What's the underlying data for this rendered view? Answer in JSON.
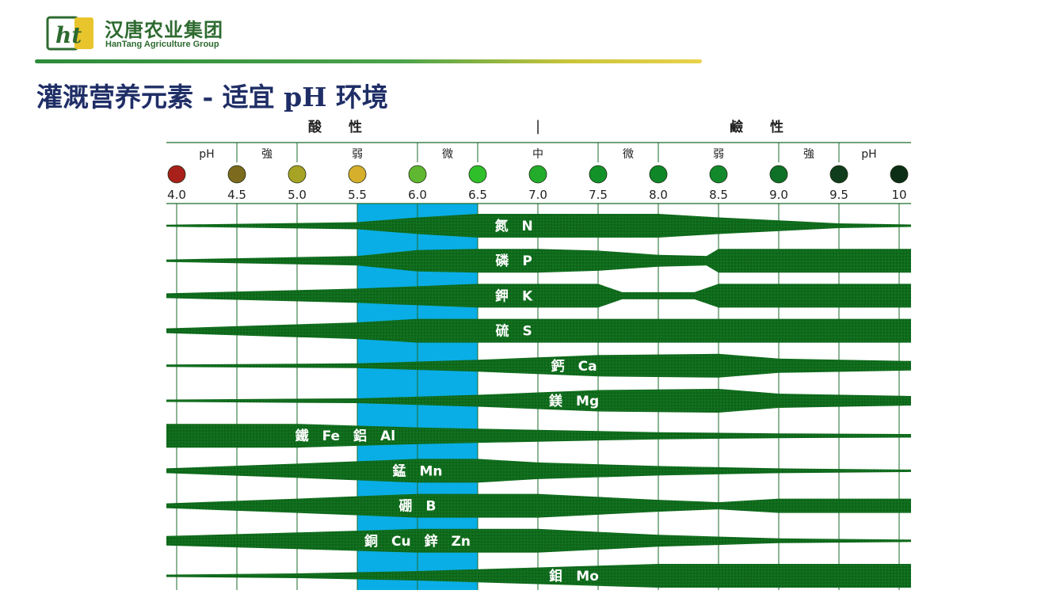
{
  "brand": {
    "mark": "ht",
    "name_cn": "汉唐农业集团",
    "name_en": "HanTang Agriculture Group"
  },
  "page": {
    "title": "灌溉营养元素 - 适宜 pH 环境"
  },
  "colors": {
    "brand_green": "#2d6a2f",
    "title_navy": "#1f2e66",
    "band_green": "#0f6b1c",
    "optimal_blue": "#0aaee6"
  },
  "chart_data": {
    "type": "area",
    "title": "",
    "xlabel": "",
    "ylabel": "",
    "xlim": [
      4.0,
      10.0
    ],
    "grid": true,
    "regions": [
      {
        "label": "酸　　性",
        "x0": 4.0,
        "x1": 6.5
      },
      {
        "label": "鹼　　性",
        "x0": 7.5,
        "x1": 10.0
      }
    ],
    "region_divider": "|",
    "zones": [
      {
        "label": "pH",
        "x0": 4.0,
        "x1": 4.5
      },
      {
        "label": "強",
        "x0": 4.5,
        "x1": 5.0
      },
      {
        "label": "弱",
        "x0": 5.0,
        "x1": 6.0
      },
      {
        "label": "微",
        "x0": 6.0,
        "x1": 6.5
      },
      {
        "label": "中",
        "x0": 6.5,
        "x1": 7.5
      },
      {
        "label": "微",
        "x0": 7.5,
        "x1": 8.0
      },
      {
        "label": "弱",
        "x0": 8.0,
        "x1": 9.0
      },
      {
        "label": "強",
        "x0": 9.0,
        "x1": 9.5
      },
      {
        "label": "pH",
        "x0": 9.5,
        "x1": 10.0
      }
    ],
    "ph_ticks": [
      {
        "value": 4.0,
        "label": "4.0",
        "color": "#a8201a"
      },
      {
        "value": 4.5,
        "label": "4.5",
        "color": "#7c6a1e"
      },
      {
        "value": 5.0,
        "label": "5.0",
        "color": "#a7a324"
      },
      {
        "value": 5.5,
        "label": "5.5",
        "color": "#d6b02c"
      },
      {
        "value": 6.0,
        "label": "6.0",
        "color": "#5fb82f"
      },
      {
        "value": 6.5,
        "label": "6.5",
        "color": "#2fbf2a"
      },
      {
        "value": 7.0,
        "label": "7.0",
        "color": "#23ab2c"
      },
      {
        "value": 7.5,
        "label": "7.5",
        "color": "#13922a"
      },
      {
        "value": 8.0,
        "label": "8.0",
        "color": "#0f8729"
      },
      {
        "value": 8.5,
        "label": "8.5",
        "color": "#128a2c"
      },
      {
        "value": 9.0,
        "label": "9.0",
        "color": "#0f7027"
      },
      {
        "value": 9.5,
        "label": "9.5",
        "color": "#103d1c"
      },
      {
        "value": 10.0,
        "label": "10",
        "color": "#0d2e16"
      }
    ],
    "optimal_range": [
      5.5,
      6.5
    ],
    "series": [
      {
        "name": "氮　N",
        "label_x": 6.8,
        "profile": [
          [
            4.0,
            0.08
          ],
          [
            5.5,
            0.3
          ],
          [
            6.0,
            0.7
          ],
          [
            6.5,
            1.0
          ],
          [
            8.0,
            1.0
          ],
          [
            8.5,
            0.7
          ],
          [
            9.5,
            0.2
          ],
          [
            10.0,
            0.1
          ]
        ]
      },
      {
        "name": "磷　P",
        "label_x": 6.8,
        "profile": [
          [
            4.0,
            0.1
          ],
          [
            5.5,
            0.4
          ],
          [
            6.0,
            0.9
          ],
          [
            6.5,
            1.0
          ],
          [
            7.0,
            1.0
          ],
          [
            7.5,
            0.85
          ],
          [
            8.0,
            0.5
          ],
          [
            8.4,
            0.4
          ],
          [
            8.5,
            1.0
          ],
          [
            10.0,
            1.0
          ]
        ]
      },
      {
        "name": "鉀　K",
        "label_x": 6.8,
        "profile": [
          [
            4.0,
            0.2
          ],
          [
            5.5,
            0.6
          ],
          [
            6.0,
            0.8
          ],
          [
            6.5,
            1.0
          ],
          [
            7.5,
            1.0
          ],
          [
            7.7,
            0.3
          ],
          [
            8.3,
            0.3
          ],
          [
            8.5,
            1.0
          ],
          [
            10.0,
            1.0
          ]
        ]
      },
      {
        "name": "硫　S",
        "label_x": 6.8,
        "profile": [
          [
            4.0,
            0.2
          ],
          [
            5.5,
            0.7
          ],
          [
            6.0,
            1.0
          ],
          [
            10.0,
            1.0
          ]
        ]
      },
      {
        "name": "鈣　Ca",
        "label_x": 7.3,
        "profile": [
          [
            4.0,
            0.1
          ],
          [
            5.5,
            0.2
          ],
          [
            6.5,
            0.5
          ],
          [
            7.0,
            0.7
          ],
          [
            7.5,
            0.9
          ],
          [
            8.5,
            1.0
          ],
          [
            9.0,
            0.6
          ],
          [
            10.0,
            0.4
          ]
        ]
      },
      {
        "name": "鎂　Mg",
        "label_x": 7.3,
        "profile": [
          [
            4.0,
            0.1
          ],
          [
            5.5,
            0.2
          ],
          [
            6.5,
            0.5
          ],
          [
            7.0,
            0.7
          ],
          [
            7.5,
            0.9
          ],
          [
            8.5,
            1.0
          ],
          [
            9.0,
            0.6
          ],
          [
            10.0,
            0.4
          ]
        ]
      },
      {
        "name": "鐵　Fe　鋁　Al",
        "label_x": 5.4,
        "profile": [
          [
            4.0,
            1.0
          ],
          [
            5.0,
            1.0
          ],
          [
            6.0,
            0.7
          ],
          [
            7.0,
            0.5
          ],
          [
            8.0,
            0.3
          ],
          [
            9.0,
            0.2
          ],
          [
            10.0,
            0.15
          ]
        ]
      },
      {
        "name": "錳　Mn",
        "label_x": 6.0,
        "profile": [
          [
            4.0,
            0.2
          ],
          [
            5.0,
            0.6
          ],
          [
            6.0,
            1.0
          ],
          [
            6.5,
            1.0
          ],
          [
            7.0,
            0.7
          ],
          [
            8.0,
            0.4
          ],
          [
            9.0,
            0.2
          ],
          [
            10.0,
            0.1
          ]
        ]
      },
      {
        "name": "硼　B",
        "label_x": 6.0,
        "profile": [
          [
            4.0,
            0.2
          ],
          [
            5.0,
            0.6
          ],
          [
            6.0,
            1.0
          ],
          [
            7.0,
            1.0
          ],
          [
            8.0,
            0.5
          ],
          [
            8.5,
            0.3
          ],
          [
            9.0,
            0.6
          ],
          [
            10.0,
            0.6
          ]
        ]
      },
      {
        "name": "銅　Cu　鋅　Zn",
        "label_x": 6.0,
        "profile": [
          [
            4.0,
            0.4
          ],
          [
            5.0,
            0.7
          ],
          [
            6.0,
            1.0
          ],
          [
            7.0,
            1.0
          ],
          [
            8.0,
            0.5
          ],
          [
            9.0,
            0.2
          ],
          [
            10.0,
            0.1
          ]
        ]
      },
      {
        "name": "鉬　Mo",
        "label_x": 7.3,
        "profile": [
          [
            4.0,
            0.1
          ],
          [
            5.0,
            0.2
          ],
          [
            6.0,
            0.4
          ],
          [
            7.0,
            0.7
          ],
          [
            8.0,
            1.0
          ],
          [
            10.0,
            1.0
          ]
        ]
      }
    ]
  }
}
